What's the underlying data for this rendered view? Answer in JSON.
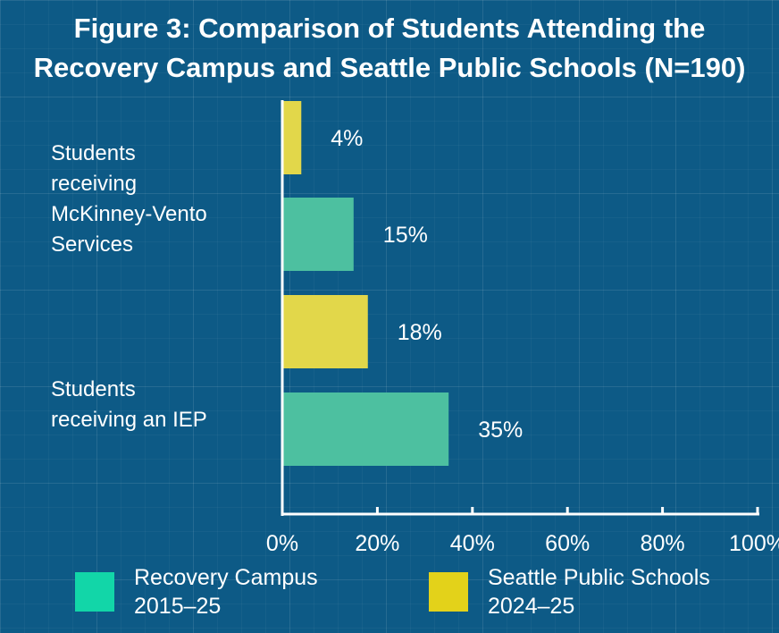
{
  "chart_data": {
    "type": "bar",
    "orientation": "horizontal",
    "title_line1": "Figure 3: Comparison of Students Attending the",
    "title_line2": "Recovery Campus and Seattle Public Schools (N=190)",
    "categories": [
      {
        "line1": "Students",
        "line2": "receiving",
        "line3": "McKinney-Vento",
        "line4": "Services"
      },
      {
        "line1": "Students",
        "line2": "receiving an IEP"
      }
    ],
    "bars": [
      {
        "category": 0,
        "series": 1,
        "value": 4,
        "label": "4%"
      },
      {
        "category": 0,
        "series": 0,
        "value": 15,
        "label": "15%"
      },
      {
        "category": 1,
        "series": 1,
        "value": 18,
        "label": "18%"
      },
      {
        "category": 1,
        "series": 0,
        "value": 35,
        "label": "35%"
      }
    ],
    "series": [
      {
        "name_line1": "Recovery Campus",
        "name_line2": "2015–25",
        "color": "#4dc0a0",
        "legend_color": "#12d6a8"
      },
      {
        "name_line1": "Seattle Public Schools",
        "name_line2": "2024–25",
        "color": "#e2d74a",
        "legend_color": "#e3d21a"
      }
    ],
    "xlim": [
      0,
      100
    ],
    "xticks": [
      {
        "value": 0,
        "label": "0%"
      },
      {
        "value": 20,
        "label": "20%"
      },
      {
        "value": 40,
        "label": "40%"
      },
      {
        "value": 60,
        "label": "60%"
      },
      {
        "value": 80,
        "label": "80%"
      },
      {
        "value": 100,
        "label": "100%"
      }
    ],
    "legend_position": "bottom",
    "grid": false
  }
}
